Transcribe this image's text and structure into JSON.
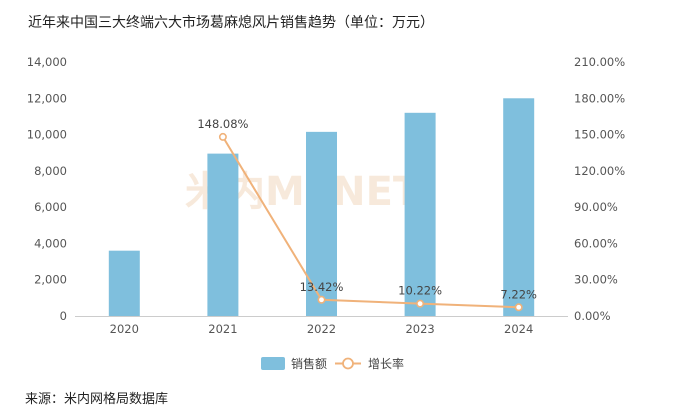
{
  "title": "近年来中国三大终端六大市场葛麻熄风片销售趋势（单位：万元）",
  "source": "来源：米内网格局数据库",
  "watermark": "米内MENET",
  "chart_data": {
    "type": "bar",
    "categories": [
      "2020",
      "2021",
      "2022",
      "2023",
      "2024"
    ],
    "series": [
      {
        "name": "销售额",
        "type": "bar",
        "axis": "left",
        "values": [
          3600,
          8950,
          10150,
          11200,
          12000
        ],
        "color": "#7fbfdd"
      },
      {
        "name": "增长率",
        "type": "line",
        "axis": "right",
        "values": [
          null,
          148.08,
          13.42,
          10.22,
          7.22
        ],
        "labels": [
          "",
          "148.08%",
          "13.42%",
          "10.22%",
          "7.22%"
        ],
        "color": "#f0b27a"
      }
    ],
    "y_left": {
      "ylim": [
        0,
        14000
      ],
      "ticks": [
        "0",
        "2,000",
        "4,000",
        "6,000",
        "8,000",
        "10,000",
        "12,000",
        "14,000"
      ]
    },
    "y_right": {
      "ylim": [
        0,
        210
      ],
      "ticks": [
        "0.00%",
        "30.00%",
        "60.00%",
        "90.00%",
        "120.00%",
        "150.00%",
        "180.00%",
        "210.00%"
      ]
    },
    "grid": false,
    "legend": "bottom-center"
  }
}
